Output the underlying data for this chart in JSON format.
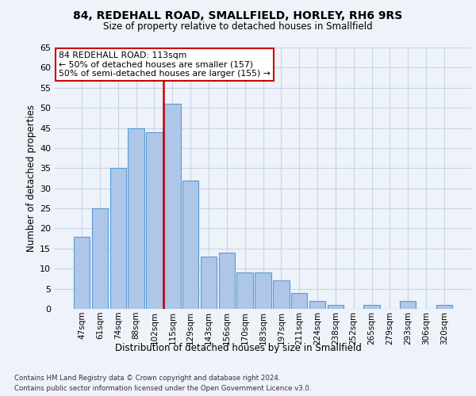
{
  "title1": "84, REDEHALL ROAD, SMALLFIELD, HORLEY, RH6 9RS",
  "title2": "Size of property relative to detached houses in Smallfield",
  "xlabel": "Distribution of detached houses by size in Smallfield",
  "ylabel": "Number of detached properties",
  "categories": [
    "47sqm",
    "61sqm",
    "74sqm",
    "88sqm",
    "102sqm",
    "115sqm",
    "129sqm",
    "143sqm",
    "156sqm",
    "170sqm",
    "183sqm",
    "197sqm",
    "211sqm",
    "224sqm",
    "238sqm",
    "252sqm",
    "265sqm",
    "279sqm",
    "293sqm",
    "306sqm",
    "320sqm"
  ],
  "values": [
    18,
    25,
    35,
    45,
    44,
    51,
    32,
    13,
    14,
    9,
    9,
    7,
    4,
    2,
    1,
    0,
    1,
    0,
    2,
    0,
    1
  ],
  "bar_color": "#aec6e8",
  "bar_edge_color": "#5b9bd5",
  "vline_color": "#cc0000",
  "annotation_title": "84 REDEHALL ROAD: 113sqm",
  "annotation_line1": "← 50% of detached houses are smaller (157)",
  "annotation_line2": "50% of semi-detached houses are larger (155) →",
  "annotation_box_color": "#ffffff",
  "annotation_box_edgecolor": "#cc0000",
  "ylim": [
    0,
    65
  ],
  "yticks": [
    0,
    5,
    10,
    15,
    20,
    25,
    30,
    35,
    40,
    45,
    50,
    55,
    60,
    65
  ],
  "footnote1": "Contains HM Land Registry data © Crown copyright and database right 2024.",
  "footnote2": "Contains public sector information licensed under the Open Government Licence v3.0.",
  "background_color": "#eef2f9",
  "plot_bg_color": "#eef2f9",
  "grid_color": "#c8d4e8"
}
